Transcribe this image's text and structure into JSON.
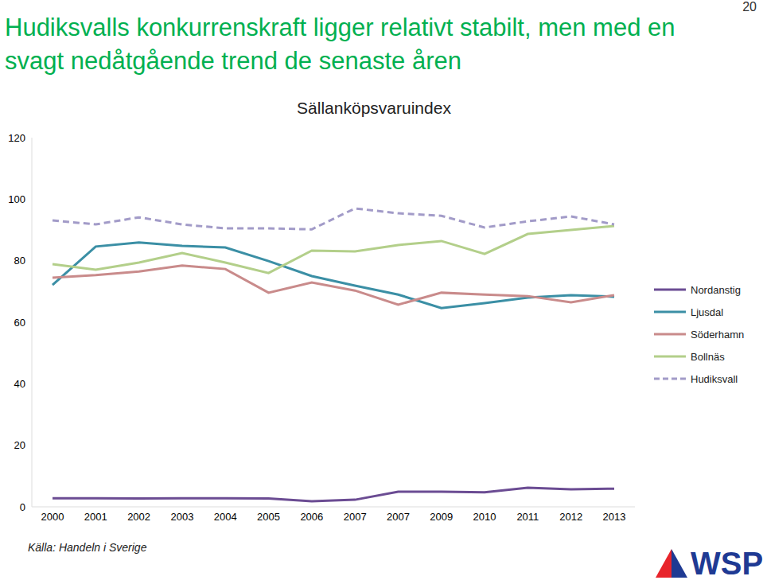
{
  "chart_data": {
    "type": "line",
    "title": "Hudiksvalls konkurrenskraft ligger relativt stabilt, men med en svagt nedåtgående trend de senaste åren",
    "subtitle": "Sällanköpsvaruindex",
    "annotations": [
      "20",
      "Källa: Handeln i Sverige",
      "WSP"
    ],
    "categories": [
      "2000",
      "2001",
      "2002",
      "2003",
      "2004",
      "2005",
      "2006",
      "2007",
      "2007",
      "2009",
      "2010",
      "2011",
      "2012",
      "2013"
    ],
    "series": [
      {
        "name": "Nordanstig",
        "color": "#6b4c93",
        "line_style": "solid",
        "values": [
          2.8,
          2.8,
          2.7,
          2.8,
          2.8,
          2.7,
          1.8,
          2.3,
          4.9,
          4.9,
          4.7,
          6.2,
          5.7,
          5.9
        ]
      },
      {
        "name": "Ljusdal",
        "color": "#3b8fa5",
        "line_style": "solid",
        "values": [
          72.1,
          84.6,
          85.9,
          84.8,
          84.3,
          79.9,
          75.0,
          71.9,
          69.0,
          64.6,
          66.2,
          68.0,
          68.8,
          68.3
        ]
      },
      {
        "name": "Söderhamn",
        "color": "#c98b8b",
        "line_style": "solid",
        "values": [
          74.5,
          75.3,
          76.5,
          78.4,
          77.3,
          69.6,
          72.9,
          70.3,
          65.7,
          69.6,
          69.0,
          68.5,
          66.5,
          68.8
        ]
      },
      {
        "name": "Bollnäs",
        "color": "#b3cf8a",
        "line_style": "solid",
        "values": [
          78.9,
          77.1,
          79.4,
          82.5,
          79.4,
          76.0,
          83.3,
          83.0,
          85.1,
          86.4,
          82.2,
          88.7,
          90.0,
          91.3
        ]
      },
      {
        "name": "Hudiksvall",
        "color": "#a29bc8",
        "line_style": "dashed",
        "values": [
          93.1,
          91.8,
          94.1,
          91.8,
          90.5,
          90.5,
          90.2,
          97.0,
          95.4,
          94.6,
          90.8,
          92.8,
          94.4,
          91.8
        ]
      }
    ],
    "ylim": [
      0,
      120
    ],
    "yticks": [
      0,
      20,
      40,
      60,
      80,
      100,
      120
    ],
    "grid": false,
    "legend": "right"
  }
}
